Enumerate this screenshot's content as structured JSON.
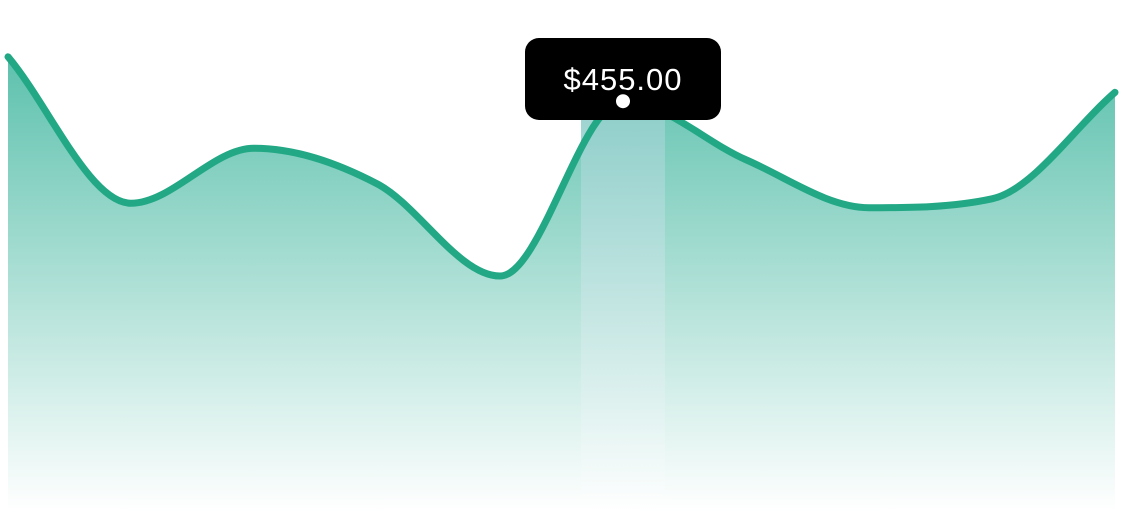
{
  "chart_data": {
    "type": "area",
    "x": [
      0,
      1,
      2,
      3,
      4,
      5,
      6,
      7,
      8,
      9
    ],
    "values": [
      505,
      340,
      402,
      362,
      258,
      455,
      389,
      335,
      345,
      465
    ],
    "highlight_index": 5,
    "title": "",
    "xlabel": "",
    "ylabel": "",
    "grid": false,
    "legend": "none",
    "colors": {
      "line": "#22a884",
      "fill_top": "#5dc1ad",
      "fill_bottom": "#ffffff",
      "highlight_band": "#88cac7",
      "tooltip_bg": "#000000",
      "tooltip_text": "#ffffff"
    }
  },
  "tooltip": {
    "label": "$455.00"
  }
}
